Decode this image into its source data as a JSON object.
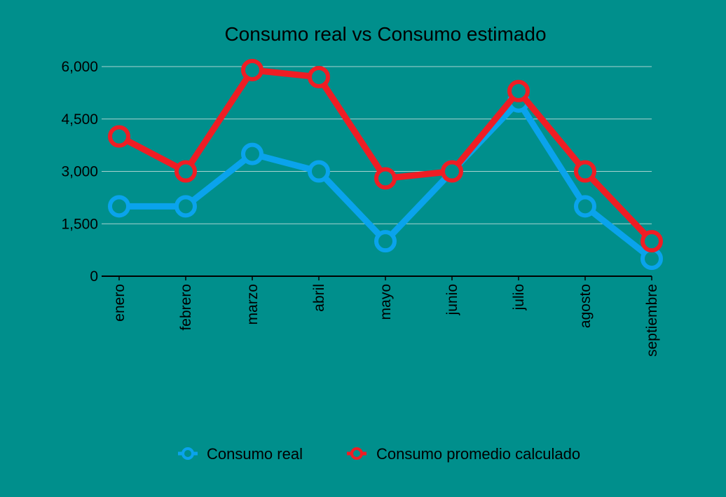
{
  "colors": {
    "background": "#008f8c",
    "gridline": "#a9d3d0",
    "axis": "#000000"
  },
  "chart_data": {
    "type": "line",
    "title": "Consumo real vs Consumo estimado",
    "xlabel": "",
    "ylabel": "",
    "categories": [
      "enero",
      "febrero",
      "marzo",
      "abril",
      "mayo",
      "junio",
      "julio",
      "agosto",
      "septiembre"
    ],
    "ylim": [
      0,
      6000
    ],
    "yticks": [
      0,
      1500,
      3000,
      4500,
      6000
    ],
    "ytick_labels": [
      "0",
      "1,500",
      "3,000",
      "4,500",
      "6,000"
    ],
    "grid": true,
    "legend_position": "bottom",
    "series": [
      {
        "name": "Consumo real",
        "color": "#0aa3ec",
        "values": [
          2000,
          2000,
          3500,
          3000,
          1000,
          3000,
          5000,
          2000,
          500
        ]
      },
      {
        "name": "Consumo promedio calculado",
        "color": "#ef1d24",
        "values": [
          4000,
          3000,
          5900,
          5700,
          2800,
          3000,
          5300,
          3000,
          1000
        ]
      }
    ]
  }
}
